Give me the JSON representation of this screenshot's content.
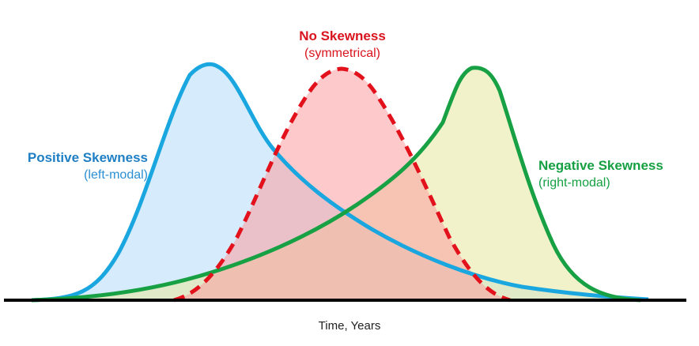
{
  "x_axis_label": "Time, Years",
  "curves": [
    {
      "key": "positive",
      "title": "Positive Skewness",
      "subtitle": "(left-modal)",
      "stroke": "#1aa7e0",
      "fill": "#cfe8fa",
      "fill_opacity": 0.85,
      "dashed": false
    },
    {
      "key": "none",
      "title": "No Skewness",
      "subtitle": "(symmetrical)",
      "stroke": "#e2111b",
      "fill": "#fb9da0",
      "fill_opacity": 0.55,
      "dashed": true
    },
    {
      "key": "negative",
      "title": "Negative Skewness",
      "subtitle": "(right-modal)",
      "stroke": "#18a144",
      "fill": "#e7eaa6",
      "fill_opacity": 0.6,
      "dashed": false
    }
  ],
  "label_colors": {
    "positive_title": "#1f7fc4",
    "positive_subtitle": "#2b8fd3",
    "none_title": "#d9141e",
    "none_subtitle": "#d9141e",
    "negative_title": "#16a043",
    "negative_subtitle": "#16a043"
  },
  "axis_color": "#000000"
}
